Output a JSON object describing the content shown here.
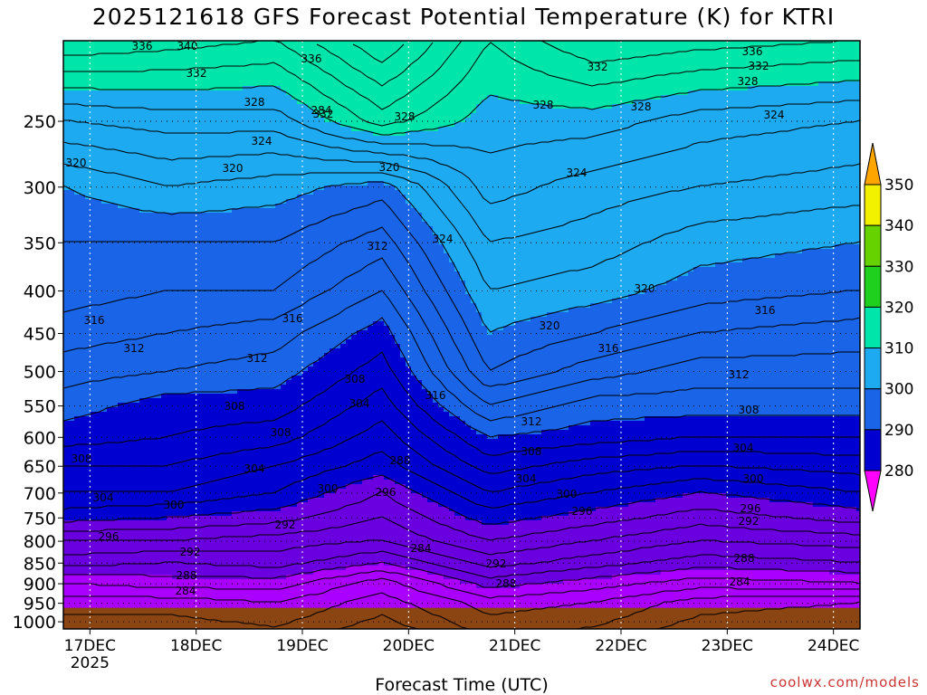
{
  "chart_data": {
    "type": "heatmap",
    "title": "2025121618 GFS Forecast Potential Temperature (K) for KTRI",
    "xlabel": "Forecast Time (UTC)",
    "ylabel": "",
    "x_start": "2025-12-16T18:00Z",
    "x_end": "2025-12-24T06:00Z",
    "x_ticks": [
      "17DEC",
      "18DEC",
      "19DEC",
      "20DEC",
      "21DEC",
      "22DEC",
      "23DEC",
      "24DEC"
    ],
    "x_year_label": "2025",
    "y_axis": "pressure",
    "y_range_hpa": [
      1020,
      200
    ],
    "y_ticks": [
      "250",
      "300",
      "350",
      "400",
      "450",
      "500",
      "550",
      "600",
      "650",
      "700",
      "750",
      "800",
      "850",
      "900",
      "950",
      "1000"
    ],
    "colorbar": {
      "ticks": [
        "280",
        "290",
        "300",
        "310",
        "320",
        "330",
        "340",
        "350"
      ],
      "colors": [
        "#ff00ff",
        "#aa00ff",
        "#6a00e0",
        "#0000d0",
        "#1a64e8",
        "#1eaaf0",
        "#00e6aa",
        "#1fd01f",
        "#66d200",
        "#f2f200",
        "#ffa500"
      ]
    },
    "theta_profiles": [
      {
        "time": "2025-12-16T18Z",
        "p950": 285,
        "p900": 288,
        "p850": 293,
        "p800": 296,
        "p750": 301,
        "p700": 304,
        "p650": 306,
        "p600": 309,
        "p550": 311,
        "p500": 313,
        "p450": 315,
        "p400": 317,
        "p350": 318,
        "p300": 320,
        "p250": 326,
        "p200": 336
      },
      {
        "time": "2025-12-17T18Z",
        "p950": 285,
        "p900": 289,
        "p850": 292,
        "p800": 296,
        "p750": 300,
        "p700": 304,
        "p650": 306,
        "p600": 308,
        "p550": 309,
        "p500": 312,
        "p450": 314,
        "p400": 316,
        "p350": 318,
        "p300": 322,
        "p250": 327,
        "p200": 335
      },
      {
        "time": "2025-12-18T18Z",
        "p950": 286,
        "p900": 289,
        "p850": 293,
        "p800": 295,
        "p750": 299,
        "p700": 302,
        "p650": 304,
        "p600": 307,
        "p550": 309,
        "p500": 311,
        "p450": 313,
        "p400": 316,
        "p350": 318,
        "p300": 321,
        "p250": 327,
        "p200": 334
      },
      {
        "time": "2025-12-19T18Z",
        "p950": 283,
        "p900": 285,
        "p850": 290,
        "p800": 294,
        "p750": 296,
        "p700": 298,
        "p650": 301,
        "p600": 303,
        "p550": 305,
        "p500": 307,
        "p450": 309,
        "p400": 312,
        "p350": 315,
        "p300": 319,
        "p250": 333,
        "p200": 340
      },
      {
        "time": "2025-12-20T18Z",
        "p950": 287,
        "p900": 291,
        "p850": 295,
        "p800": 298,
        "p750": 301,
        "p700": 304,
        "p650": 307,
        "p600": 310,
        "p550": 314,
        "p500": 318,
        "p450": 320,
        "p400": 322,
        "p350": 324,
        "p300": 327,
        "p250": 329,
        "p200": 332
      },
      {
        "time": "2025-12-21T18Z",
        "p950": 286,
        "p900": 289,
        "p850": 293,
        "p800": 296,
        "p750": 299,
        "p700": 302,
        "p650": 305,
        "p600": 309,
        "p550": 311,
        "p500": 315,
        "p450": 318,
        "p400": 321,
        "p350": 323,
        "p300": 325,
        "p250": 329,
        "p200": 336
      },
      {
        "time": "2025-12-22T18Z",
        "p950": 283,
        "p900": 287,
        "p850": 291,
        "p800": 294,
        "p750": 297,
        "p700": 300,
        "p650": 304,
        "p600": 308,
        "p550": 311,
        "p500": 313,
        "p450": 316,
        "p400": 319,
        "p350": 321,
        "p300": 324,
        "p250": 327,
        "p200": 335
      },
      {
        "time": "2025-12-24T06Z",
        "p950": 282,
        "p900": 288,
        "p850": 292,
        "p800": 295,
        "p750": 299,
        "p700": 302,
        "p650": 305,
        "p600": 308,
        "p550": 311,
        "p500": 313,
        "p450": 315,
        "p400": 318,
        "p350": 320,
        "p300": 323,
        "p250": 326,
        "p200": 334
      }
    ],
    "contour_labels": [
      "336",
      "340",
      "332",
      "328",
      "336",
      "332",
      "328",
      "324",
      "320",
      "320",
      "324",
      "320",
      "312",
      "316",
      "316",
      "312",
      "312",
      "308",
      "308",
      "304",
      "316",
      "308",
      "304",
      "300",
      "296",
      "284",
      "292",
      "288",
      "284",
      "288",
      "292",
      "300",
      "296",
      "304",
      "312",
      "308",
      "316",
      "320",
      "324",
      "328",
      "332",
      "336",
      "328",
      "324",
      "320",
      "316",
      "312",
      "308",
      "304",
      "300",
      "296",
      "292",
      "288",
      "284",
      "308",
      "304",
      "300",
      "296",
      "292",
      "288",
      "284",
      "328",
      "332"
    ],
    "contour_interval_K": 2,
    "terrain_color": "#8b4513",
    "grid": "dotted"
  },
  "page": {
    "title": "2025121618 GFS Forecast Potential Temperature (K) for KTRI",
    "xaxis_title": "Forecast Time (UTC)",
    "credit": "coolwx.com/models"
  }
}
